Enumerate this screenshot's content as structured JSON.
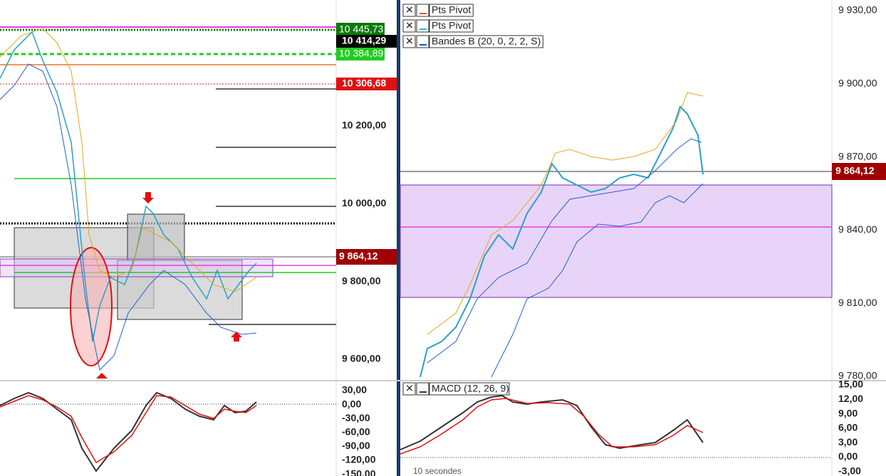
{
  "left_chart": {
    "price_axis": [
      "10 200,00",
      "10 000,00",
      "9 800,00",
      "9 600,00"
    ],
    "badges": [
      "10 445,73",
      "10 414,29",
      "10 384,89",
      "10 306,68",
      "9 864,12"
    ],
    "macd_axis": [
      "30,00",
      "0,00",
      "-30,00",
      "-60,00",
      "-90,00",
      "-120,00",
      "-150,00"
    ]
  },
  "right_chart": {
    "legend": [
      "Pts Pivot",
      "Pts Pivot",
      "Bandes B (20, 0, 2, 2, S)"
    ],
    "price_axis": [
      "9 930,00",
      "9 900,00",
      "9 870,00",
      "9 840,00",
      "9 810,00",
      "9 780,00"
    ],
    "price_badge": "9 864,12",
    "macd_legend": "MACD (12, 26, 9)",
    "macd_axis": [
      "15,00",
      "12,00",
      "9,00",
      "6,00",
      "3,00",
      "0,00",
      "-3,00"
    ],
    "timeframe": "10 secondes"
  }
}
